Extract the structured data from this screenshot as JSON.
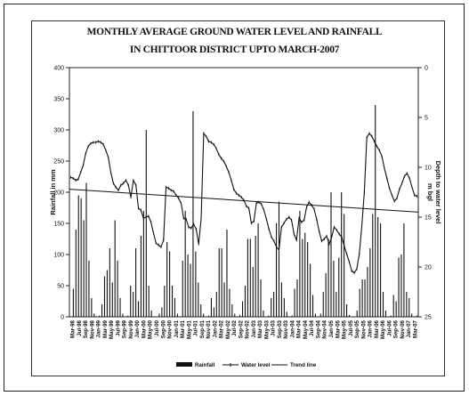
{
  "chart_data": {
    "type": "bar+line",
    "title": "MONTHLY AVERAGE GROUND WATER LEVEL AND RAINFALL",
    "subtitle": "IN CHITTOOR DISTRICT UPTO MARCH-2007",
    "ylabel": "Rainfall in mm",
    "y2label_line1": "Depth to water level",
    "y2label_line2": "m bgl",
    "ylim": [
      0,
      400
    ],
    "y_ticks": [
      "0",
      "50",
      "100",
      "150",
      "200",
      "250",
      "300",
      "350",
      "400"
    ],
    "y2lim": [
      0,
      25
    ],
    "y2_inverted": true,
    "y2_ticks": [
      "0",
      "5",
      "10",
      "15",
      "20",
      "25"
    ],
    "x_labels": [
      "Mar-98",
      "Jul-98",
      "Sep-98",
      "Nov-98",
      "Jan-99",
      "Mar-99",
      "May-99",
      "Jul-99",
      "Sep-99",
      "Nov-99",
      "Jan-00",
      "Mar-00",
      "May-00",
      "Jul-00",
      "Sep-00",
      "Nov-00",
      "Jan-01",
      "Mar-01",
      "May-01",
      "Jul-01",
      "Sep-01",
      "Nov-01",
      "Jan-02",
      "Mar-02",
      "May-02",
      "Jul-02",
      "Sep-02",
      "Nov-02",
      "Jan-03",
      "Mar-03",
      "May-03",
      "Jul-03",
      "Sep-03",
      "Nov-03",
      "Jan-04",
      "Mar-04",
      "May-04",
      "Jul-04",
      "Sep-04",
      "Nov-04",
      "Jan-05",
      "Mar-05",
      "May-05",
      "Jul-05",
      "Sep-05",
      "Nov-05",
      "Jan-06",
      "Mar-06",
      "May-06",
      "Jul-06",
      "Sep-06",
      "Nov-06",
      "Jan-07",
      "Mar-07"
    ],
    "legend": [
      "Rainfall",
      "Water level",
      "Trend line"
    ],
    "legend_position": "bottom",
    "series": [
      {
        "name": "Rainfall",
        "axis": "left",
        "kind": "bar",
        "values": [
          0,
          45,
          140,
          195,
          190,
          155,
          215,
          90,
          30,
          5,
          0,
          2,
          20,
          65,
          75,
          110,
          55,
          155,
          90,
          30,
          5,
          0,
          2,
          50,
          40,
          110,
          25,
          130,
          170,
          300,
          50,
          10,
          0,
          0,
          5,
          15,
          50,
          120,
          105,
          50,
          30,
          5,
          0,
          90,
          170,
          100,
          85,
          330,
          105,
          55,
          20,
          5,
          0,
          2,
          30,
          15,
          40,
          110,
          110,
          55,
          140,
          45,
          20,
          5,
          0,
          3,
          25,
          50,
          125,
          125,
          80,
          130,
          150,
          60,
          10,
          0,
          2,
          30,
          40,
          150,
          185,
          55,
          30,
          8,
          0,
          2,
          45,
          60,
          170,
          125,
          135,
          120,
          85,
          35,
          5,
          0,
          5,
          40,
          70,
          125,
          200,
          90,
          40,
          95,
          200,
          165,
          20,
          3,
          0,
          0,
          10,
          45,
          60,
          60,
          80,
          110,
          165,
          340,
          160,
          150,
          40,
          10,
          0,
          2,
          35,
          25,
          95,
          100,
          150,
          40,
          30,
          5,
          0,
          2
        ]
      },
      {
        "name": "Water level",
        "axis": "right",
        "kind": "line",
        "values": [
          11.0,
          11.1,
          11.3,
          11.2,
          10.5,
          9.8,
          8.6,
          7.9,
          7.6,
          7.5,
          7.5,
          7.4,
          7.5,
          7.7,
          8.3,
          9.0,
          10.5,
          11.6,
          12.0,
          12.3,
          11.8,
          11.6,
          11.3,
          11.8,
          13.0,
          11.3,
          11.8,
          14.1,
          14.3,
          15.1,
          15.0,
          14.9,
          15.5,
          16.6,
          17.6,
          17.8,
          18.0,
          17.3,
          12.0,
          12.1,
          12.3,
          12.4,
          12.8,
          13.1,
          13.6,
          15.1,
          15.2,
          16.0,
          16.1,
          15.7,
          16.2,
          17.7,
          15.1,
          6.6,
          6.9,
          7.4,
          7.5,
          7.7,
          8.1,
          8.7,
          9.1,
          9.4,
          9.9,
          10.5,
          11.3,
          12.2,
          12.6,
          12.8,
          13.0,
          13.3,
          13.9,
          14.1,
          15.6,
          15.4,
          13.6,
          13.5,
          13.7,
          14.3,
          15.2,
          16.2,
          17.0,
          17.4,
          18.0,
          18.3,
          16.0,
          15.6,
          15.2,
          15.0,
          15.3,
          16.7,
          17.3,
          15.1,
          15.5,
          15.3,
          14.0,
          13.5,
          13.8,
          14.2,
          15.2,
          16.4,
          17.4,
          17.2,
          16.9,
          17.7,
          17.0,
          16.0,
          16.3,
          16.7,
          17.0,
          17.9,
          18.7,
          19.5,
          20.4,
          20.6,
          20.2,
          18.7,
          15.9,
          12.5,
          7.0,
          6.6,
          6.9,
          7.4,
          7.9,
          8.3,
          8.9,
          10.1,
          11.1,
          12.1,
          12.8,
          13.4,
          13.1,
          12.2,
          11.6,
          10.9,
          10.6,
          11.1,
          12.0,
          12.8,
          12.9
        ]
      },
      {
        "name": "Trend line",
        "axis": "right",
        "kind": "line",
        "values": [
          12.2,
          14.5
        ]
      }
    ]
  }
}
